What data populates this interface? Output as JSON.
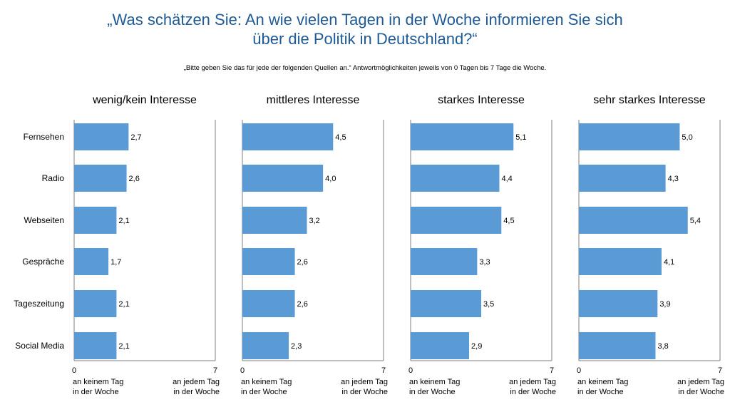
{
  "title_line1": "„Was schätzen Sie: An wie vielen Tagen in der Woche informieren Sie sich",
  "title_line2": "über die Politik in Deutschland?“",
  "subtitle": "„Bitte geben Sie das für jede der folgenden Quellen an.“ Antwortmöglichkeiten jeweils von 0 Tagen bis 7 Tage die Woche.",
  "colors": {
    "bar": "#5b9bd5",
    "title": "#1f5a96",
    "axis": "#7f7f7f"
  },
  "chart_data": {
    "type": "bar",
    "orientation": "horizontal",
    "xlim": [
      0,
      7
    ],
    "categories": [
      "Fernsehen",
      "Radio",
      "Webseiten",
      "Gespräche",
      "Tageszeitung",
      "Social Media"
    ],
    "x_tick_labels": [
      "0",
      "7"
    ],
    "x_axis_left_label": [
      "an keinem Tag",
      "in der Woche"
    ],
    "x_axis_right_label": [
      "an jedem Tag",
      "in der Woche"
    ],
    "panels": [
      {
        "title": "wenig/kein Interesse",
        "values": [
          2.7,
          2.6,
          2.1,
          1.7,
          2.1,
          2.1
        ],
        "value_labels": [
          "2,7",
          "2,6",
          "2,1",
          "1,7",
          "2,1",
          "2,1"
        ]
      },
      {
        "title": "mittleres Interesse",
        "values": [
          4.5,
          4.0,
          3.2,
          2.6,
          2.6,
          2.3
        ],
        "value_labels": [
          "4,5",
          "4,0",
          "3,2",
          "2,6",
          "2,6",
          "2,3"
        ]
      },
      {
        "title": "starkes Interesse",
        "values": [
          5.1,
          4.4,
          4.5,
          3.3,
          3.5,
          2.9
        ],
        "value_labels": [
          "5,1",
          "4,4",
          "4,5",
          "3,3",
          "3,5",
          "2,9"
        ]
      },
      {
        "title": "sehr starkes Interesse",
        "values": [
          5.0,
          4.3,
          5.4,
          4.1,
          3.9,
          3.8
        ],
        "value_labels": [
          "5,0",
          "4,3",
          "5,4",
          "4,1",
          "3,9",
          "3,8"
        ]
      }
    ]
  }
}
